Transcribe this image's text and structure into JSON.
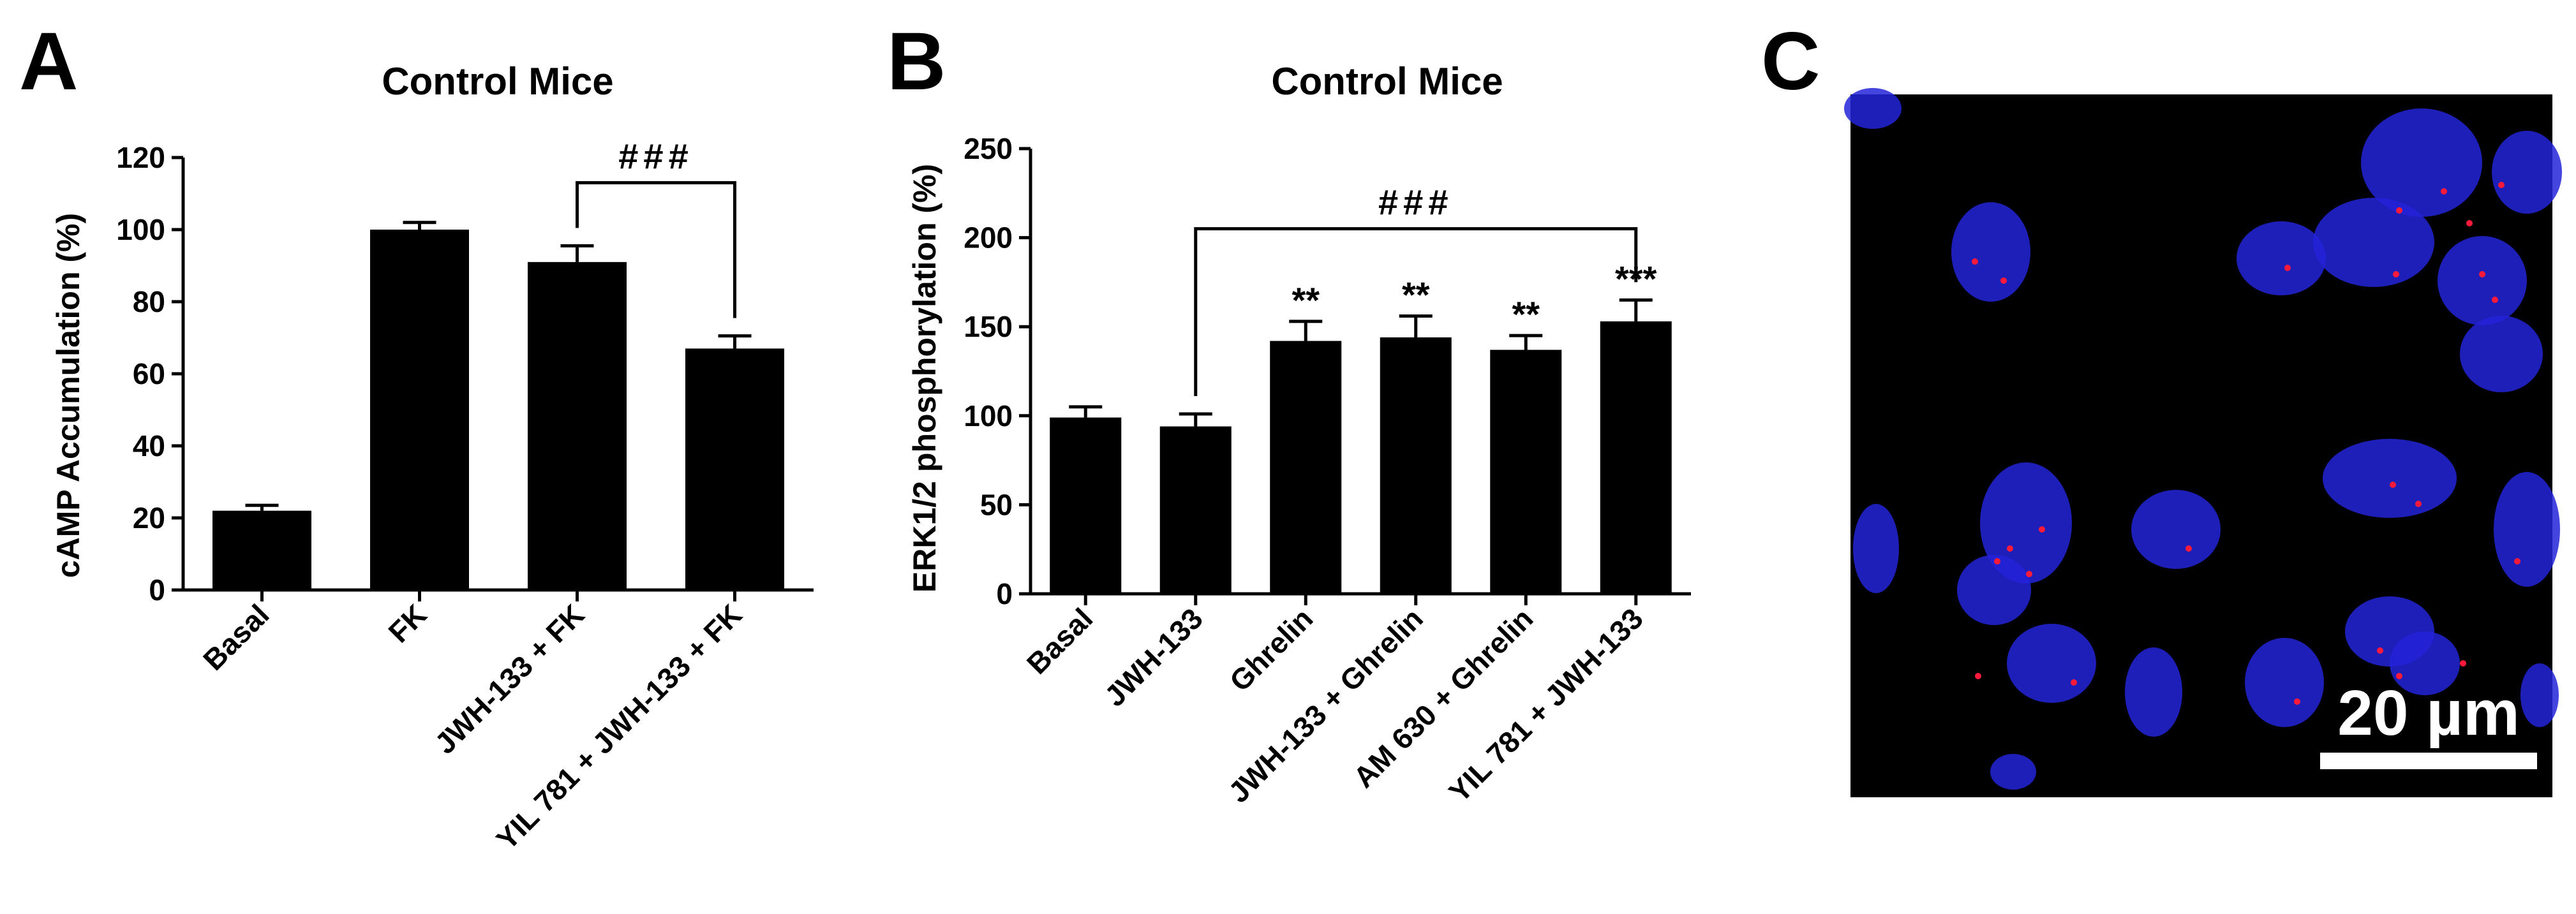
{
  "colors": {
    "bar": "#000000",
    "axis": "#000000",
    "background": "#ffffff",
    "micrograph_bg": "#000000",
    "nuclei": "#2323d8",
    "signal": "#ff1a3c",
    "scale_bar": "#ffffff"
  },
  "panels": {
    "A": {
      "letter": "A"
    },
    "B": {
      "letter": "B"
    },
    "C": {
      "letter": "C",
      "scale_label": "20 µm"
    }
  },
  "chart_data": [
    {
      "type": "bar",
      "panel": "A",
      "title": "Control Mice",
      "ylabel": "cAMP Accumulation (%)",
      "xlabel": "",
      "ylim": [
        0,
        120
      ],
      "yticks": [
        0,
        20,
        40,
        60,
        80,
        100,
        120
      ],
      "categories": [
        "Basal",
        "FK",
        "JWH-133 + FK",
        "YIL 781 + JWH-133 + FK"
      ],
      "values": [
        22,
        100,
        91,
        67
      ],
      "errors": [
        1.5,
        2,
        4.5,
        3.5
      ],
      "significance": [
        {
          "label": "###",
          "from": 2,
          "to": 3
        }
      ]
    },
    {
      "type": "bar",
      "panel": "B",
      "title": "Control Mice",
      "ylabel": "ERK1/2 phosphorylation (%)",
      "xlabel": "",
      "ylim": [
        0,
        250
      ],
      "yticks": [
        0,
        50,
        100,
        150,
        200,
        250
      ],
      "categories": [
        "Basal",
        "JWH-133",
        "Ghrelin",
        "JWH-133 + Ghrelin",
        "AM 630 + Ghrelin",
        "YIL 781 + JWH-133"
      ],
      "values": [
        99,
        94,
        142,
        144,
        137,
        153
      ],
      "errors": [
        6,
        7,
        11,
        12,
        8,
        12
      ],
      "bar_labels": [
        "",
        "",
        "**",
        "**",
        "**",
        "***"
      ],
      "significance": [
        {
          "label": "###",
          "from": 1,
          "to": 5
        }
      ]
    }
  ]
}
